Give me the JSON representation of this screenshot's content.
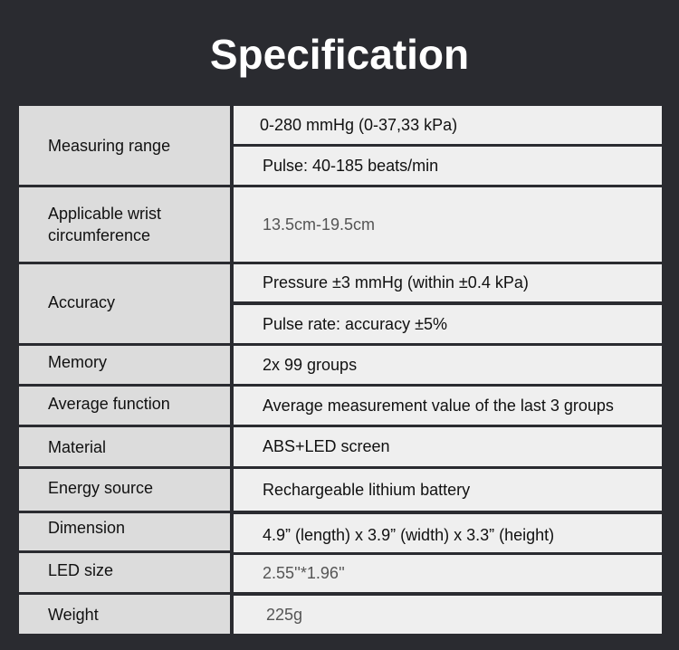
{
  "title": "Specification",
  "rows": [
    {
      "label": "Measuring range",
      "values": [
        "0-280 mmHg (0-37,33 kPa)",
        "Pulse: 40-185 beats/min"
      ]
    },
    {
      "label": "Applicable wrist circumference",
      "values": [
        "13.5cm-19.5cm"
      ]
    },
    {
      "label": "Accuracy",
      "values": [
        "Pressure ±3 mmHg (within ±0.4 kPa)",
        "Pulse rate: accuracy ±5%"
      ]
    },
    {
      "label": "Memory",
      "values": [
        "2x 99 groups"
      ]
    },
    {
      "label": "Average function",
      "values": [
        "Average measurement value of the last 3 groups"
      ]
    },
    {
      "label": "Material",
      "values": [
        "ABS+LED screen"
      ]
    },
    {
      "label": "Energy source",
      "values": [
        "Rechargeable lithium battery"
      ]
    },
    {
      "label": "Dimension",
      "values": [
        "4.9” (length) x 3.9” (width) x 3.3” (height)"
      ]
    },
    {
      "label": "LED size",
      "values": [
        "2.55''*1.96''"
      ]
    },
    {
      "label": "Weight",
      "values": [
        "225g"
      ]
    }
  ]
}
